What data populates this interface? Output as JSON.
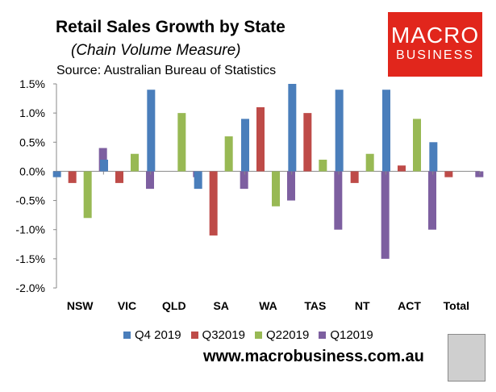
{
  "header": {
    "title": "Retail Sales Growth by State",
    "subtitle": "(Chain Volume Measure)",
    "source": "Source: Australian Bureau of Statistics"
  },
  "logo": {
    "line1": "MACRO",
    "line2": "BUSINESS",
    "color": "#e1261c"
  },
  "footer": {
    "website": "www.macrobusiness.com.au"
  },
  "chart_data": {
    "type": "bar",
    "categories": [
      "NSW",
      "VIC",
      "QLD",
      "SA",
      "WA",
      "TAS",
      "NT",
      "ACT",
      "Total"
    ],
    "series": [
      {
        "name": "Q4 2019",
        "color": "#4a7ebb",
        "values": [
          -0.1,
          0.2,
          1.4,
          -0.3,
          0.9,
          1.5,
          1.4,
          1.4,
          0.5
        ]
      },
      {
        "name": "Q32019",
        "color": "#be4b48",
        "values": [
          -0.2,
          -0.2,
          0.0,
          -1.1,
          1.1,
          1.0,
          -0.2,
          0.1,
          -0.1
        ]
      },
      {
        "name": "Q22019",
        "color": "#98b954",
        "values": [
          -0.8,
          0.3,
          1.0,
          0.6,
          -0.6,
          0.2,
          0.3,
          0.9,
          0.0
        ]
      },
      {
        "name": "Q12019",
        "color": "#7d5fa0",
        "values": [
          0.4,
          -0.3,
          -0.1,
          -0.3,
          -0.5,
          -1.0,
          -1.5,
          -1.0,
          -0.1
        ]
      }
    ],
    "yticks": [
      "1.5%",
      "1.0%",
      "0.5%",
      "0.0%",
      "-0.5%",
      "-1.0%",
      "-1.5%",
      "-2.0%"
    ],
    "ylim": [
      -2.0,
      1.5
    ],
    "legend_position": "bottom"
  }
}
